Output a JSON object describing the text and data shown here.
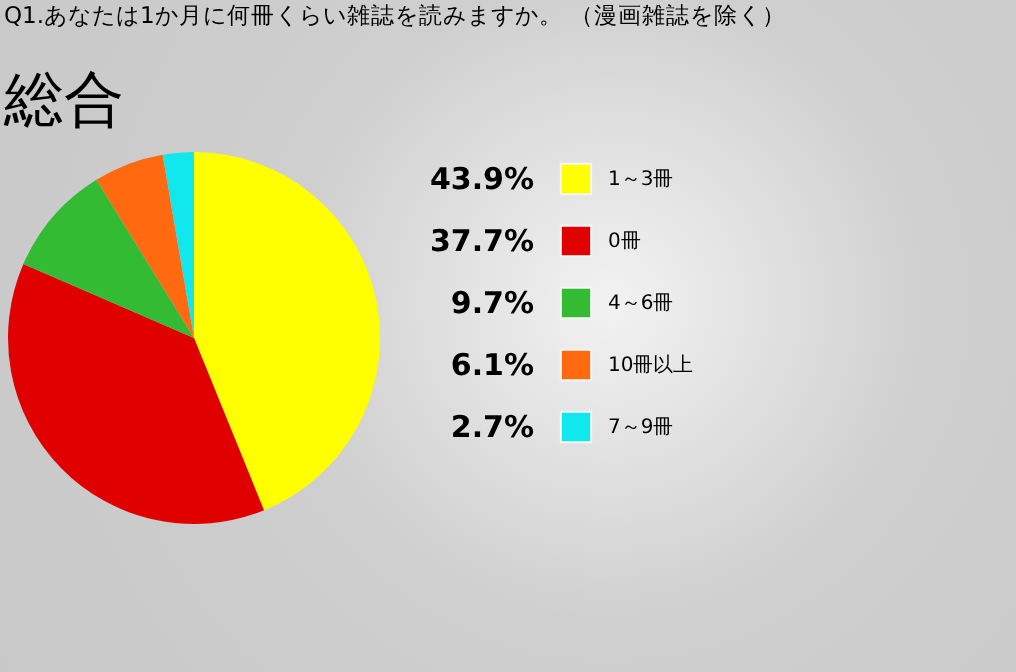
{
  "chart_data": {
    "type": "pie",
    "title": "Q1.あなたは1か月に何冊くらい雑誌を読みますか。 （漫画雑誌を除く）",
    "subtitle": "総合",
    "categories": [
      "1～3冊",
      "0冊",
      "4～6冊",
      "10冊以上",
      "7～9冊"
    ],
    "values": [
      43.9,
      37.7,
      9.7,
      6.1,
      2.7
    ],
    "value_labels": [
      "43.9%",
      "37.7%",
      "9.7%",
      "6.1%",
      "2.7%"
    ],
    "colors": [
      "#ffff00",
      "#e00000",
      "#33bb33",
      "#ff6a10",
      "#11e8ee"
    ],
    "legend": "right"
  }
}
